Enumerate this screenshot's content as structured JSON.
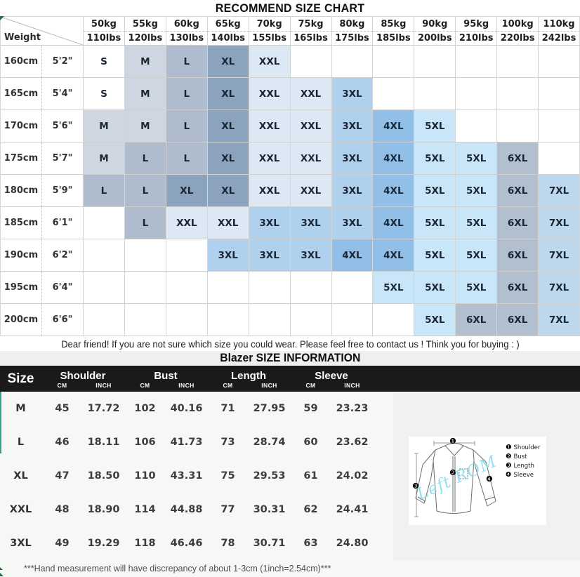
{
  "recommend_chart": {
    "title": "RECOMMEND SIZE CHART",
    "corner_label": "Weight",
    "weights": [
      {
        "kg": "50kg",
        "lbs": "110lbs"
      },
      {
        "kg": "55kg",
        "lbs": "120lbs"
      },
      {
        "kg": "60kg",
        "lbs": "130lbs"
      },
      {
        "kg": "65kg",
        "lbs": "140lbs"
      },
      {
        "kg": "70kg",
        "lbs": "155lbs"
      },
      {
        "kg": "75kg",
        "lbs": "165lbs"
      },
      {
        "kg": "80kg",
        "lbs": "175lbs"
      },
      {
        "kg": "85kg",
        "lbs": "185lbs"
      },
      {
        "kg": "90kg",
        "lbs": "200lbs"
      },
      {
        "kg": "95kg",
        "lbs": "210lbs"
      },
      {
        "kg": "100kg",
        "lbs": "220lbs"
      },
      {
        "kg": "110kg",
        "lbs": "242lbs"
      }
    ],
    "colors": {
      "w": "#ffffff",
      "m": "#cdd6e1",
      "l": "#aebccd",
      "xl": "#8ba3bd",
      "xxl": "#dce9f5",
      "x3": "#b0d1ee",
      "x4": "#92bfe8",
      "x5": "#c9e5f8",
      "x6": "#b2bfce",
      "x7": "#bdd7ec"
    },
    "rows": [
      {
        "cm": "160cm",
        "ft": "5'2\"",
        "cells": [
          "S:w",
          "M:m",
          "L:l",
          "XL:xl",
          "XXL:xxl",
          "",
          "",
          "",
          "",
          "",
          "",
          ""
        ]
      },
      {
        "cm": "165cm",
        "ft": "5'4\"",
        "cells": [
          "S:w",
          "M:m",
          "L:l",
          "XL:xl",
          "XXL:xxl",
          "XXL:xxl",
          "3XL:x3",
          "",
          "",
          "",
          "",
          ""
        ]
      },
      {
        "cm": "170cm",
        "ft": "5'6\"",
        "cells": [
          "M:m",
          "M:m",
          "L:l",
          "XL:xl",
          "XXL:xxl",
          "XXL:xxl",
          "3XL:x3",
          "4XL:x4",
          "5XL:x5",
          "",
          "",
          ""
        ]
      },
      {
        "cm": "175cm",
        "ft": "5'7\"",
        "cells": [
          "M:m",
          "L:l",
          "L:l",
          "XL:xl",
          "XXL:xxl",
          "XXL:xxl",
          "3XL:x3",
          "4XL:x4",
          "5XL:x5",
          "5XL:x5",
          "6XL:x6",
          ""
        ]
      },
      {
        "cm": "180cm",
        "ft": "5'9\"",
        "cells": [
          "L:l",
          "L:l",
          "XL:xl",
          "XL:xl",
          "XXL:xxl",
          "XXL:xxl",
          "3XL:x3",
          "4XL:x4",
          "5XL:x5",
          "5XL:x5",
          "6XL:x6",
          "7XL:x7"
        ]
      },
      {
        "cm": "185cm",
        "ft": "6'1\"",
        "cells": [
          "",
          "L:l",
          "XXL:xxl",
          "XXL:xxl",
          "3XL:x3",
          "3XL:x3",
          "3XL:x3",
          "4XL:x4",
          "5XL:x5",
          "5XL:x5",
          "6XL:x6",
          "7XL:x7"
        ]
      },
      {
        "cm": "190cm",
        "ft": "6'2\"",
        "cells": [
          "",
          "",
          "",
          "3XL:x3",
          "3XL:x3",
          "3XL:x3",
          "4XL:x4",
          "4XL:x4",
          "5XL:x5",
          "5XL:x5",
          "6XL:x6",
          "7XL:x7"
        ]
      },
      {
        "cm": "195cm",
        "ft": "6'4\"",
        "cells": [
          "",
          "",
          "",
          "",
          "",
          "",
          "",
          "5XL:x5",
          "5XL:x5",
          "5XL:x5",
          "6XL:x6",
          "7XL:x7"
        ]
      },
      {
        "cm": "200cm",
        "ft": "6'6\"",
        "cells": [
          "",
          "",
          "",
          "",
          "",
          "",
          "",
          "",
          "5XL:x5",
          "6XL:x6",
          "6XL:x6",
          "7XL:x7"
        ]
      }
    ],
    "note": "Dear friend! If you are not sure which size you could wear. Please feel free to contact us ! Think you for buying  : )"
  },
  "info_table": {
    "title": "Blazer SIZE INFORMATION",
    "size_header": "Size",
    "groups": [
      {
        "name": "Shoulder"
      },
      {
        "name": "Bust"
      },
      {
        "name": "Length"
      },
      {
        "name": "Sleeve"
      }
    ],
    "sub_headers": [
      "CM",
      "INCH"
    ],
    "rows": [
      {
        "size": "M",
        "values": [
          "45",
          "17.72",
          "102",
          "40.16",
          "71",
          "27.95",
          "59",
          "23.23"
        ]
      },
      {
        "size": "L",
        "values": [
          "46",
          "18.11",
          "106",
          "41.73",
          "73",
          "28.74",
          "60",
          "23.62"
        ]
      },
      {
        "size": "XL",
        "values": [
          "47",
          "18.50",
          "110",
          "43.31",
          "75",
          "29.53",
          "61",
          "24.02"
        ]
      },
      {
        "size": "XXL",
        "values": [
          "48",
          "18.90",
          "114",
          "44.88",
          "77",
          "30.31",
          "62",
          "24.41"
        ]
      },
      {
        "size": "3XL",
        "values": [
          "49",
          "19.29",
          "118",
          "46.46",
          "78",
          "30.71",
          "63",
          "24.80"
        ]
      }
    ],
    "footnote": "***Hand measurement will have discrepancy of about 1-3cm (1inch=2.54cm)***"
  },
  "diagram": {
    "legend": [
      {
        "num": "❶",
        "label": "Shoulder"
      },
      {
        "num": "❷",
        "label": "Bust"
      },
      {
        "num": "❸",
        "label": "Length"
      },
      {
        "num": "❹",
        "label": "Sleeve"
      }
    ],
    "markers": [
      "❶",
      "❷",
      "❸",
      "❹"
    ],
    "watermark": "Left ROM"
  }
}
